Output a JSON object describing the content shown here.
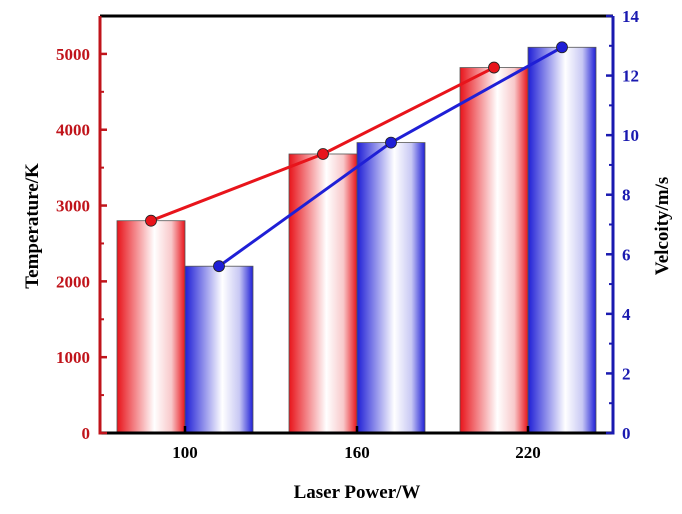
{
  "chart_data": {
    "type": "bar",
    "title": "",
    "xlabel": "Laser Power/W",
    "ylabel": "Temperature/K",
    "y2label": "Velcoity/m/s",
    "categories": [
      "100",
      "160",
      "220"
    ],
    "ylim": [
      0,
      5500
    ],
    "y2lim": [
      0,
      14
    ],
    "yticks": [
      0,
      1000,
      2000,
      3000,
      4000,
      5000
    ],
    "y2ticks": [
      0,
      2,
      4,
      6,
      8,
      10,
      12,
      14
    ],
    "grid": false,
    "legend": "none",
    "series": [
      {
        "kind": "bar",
        "axis": "left",
        "color": "#e8141b",
        "values": [
          2800,
          3680,
          4820
        ]
      },
      {
        "kind": "bar",
        "axis": "right",
        "color": "#1f1fd6",
        "values": [
          5.6,
          9.75,
          12.95
        ]
      },
      {
        "kind": "line",
        "axis": "left",
        "color": "#e8141b",
        "values": [
          2800,
          3680,
          4820
        ]
      },
      {
        "kind": "line",
        "axis": "right",
        "color": "#1f1fd6",
        "values": [
          5.6,
          9.75,
          12.95
        ]
      }
    ],
    "colors": {
      "left_axis": "#c0141b",
      "right_axis": "#1a1ab0",
      "frame": "#000000"
    }
  }
}
